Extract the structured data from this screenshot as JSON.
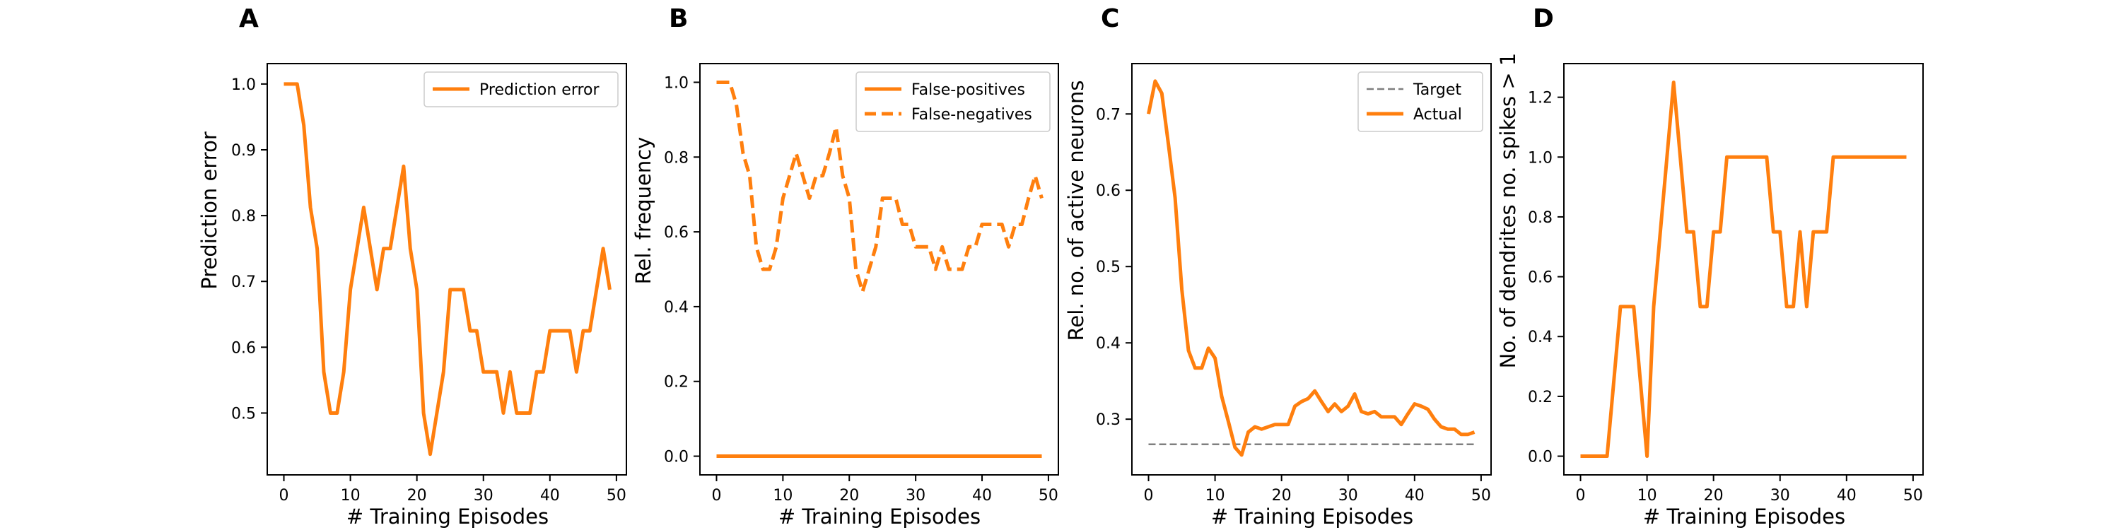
{
  "colors": {
    "orange": "#ff7f0e",
    "gray": "#7f7f7f"
  },
  "chart_data": [
    {
      "panel": "A",
      "type": "line",
      "xlabel": "# Training Episodes",
      "ylabel": "Prediction error",
      "xlim": [
        -2.5,
        51.5
      ],
      "ylim": [
        0.406,
        1.031
      ],
      "xticks": [
        0,
        10,
        20,
        30,
        40,
        50
      ],
      "yticks": [
        0.5,
        0.6,
        0.7,
        0.8,
        0.9,
        1.0
      ],
      "ytick_labels": [
        "0.5",
        "0.6",
        "0.7",
        "0.8",
        "0.9",
        "1.0"
      ],
      "legend_loc": "upper right",
      "series": [
        {
          "name": "Prediction error",
          "color": "#ff7f0e",
          "dash": "solid",
          "x": [
            0,
            1,
            2,
            3,
            4,
            5,
            6,
            7,
            8,
            9,
            10,
            11,
            12,
            13,
            14,
            15,
            16,
            17,
            18,
            19,
            20,
            21,
            22,
            23,
            24,
            25,
            26,
            27,
            28,
            29,
            30,
            31,
            32,
            33,
            34,
            35,
            36,
            37,
            38,
            39,
            40,
            41,
            42,
            43,
            44,
            45,
            46,
            47,
            48,
            49
          ],
          "y": [
            1.0,
            1.0,
            1.0,
            0.9375,
            0.8125,
            0.75,
            0.5625,
            0.5,
            0.5,
            0.5625,
            0.6875,
            0.75,
            0.8125,
            0.75,
            0.6875,
            0.75,
            0.75,
            0.8125,
            0.875,
            0.75,
            0.6875,
            0.5,
            0.4375,
            0.5,
            0.5625,
            0.6875,
            0.6875,
            0.6875,
            0.625,
            0.625,
            0.5625,
            0.5625,
            0.5625,
            0.5,
            0.5625,
            0.5,
            0.5,
            0.5,
            0.5625,
            0.5625,
            0.625,
            0.625,
            0.625,
            0.625,
            0.5625,
            0.625,
            0.625,
            0.6875,
            0.75,
            0.6875
          ]
        }
      ]
    },
    {
      "panel": "B",
      "type": "line",
      "xlabel": "# Training Episodes",
      "ylabel": "Rel. frequency",
      "xlim": [
        -2.5,
        51.5
      ],
      "ylim": [
        -0.05,
        1.05
      ],
      "xticks": [
        0,
        10,
        20,
        30,
        40,
        50
      ],
      "yticks": [
        0.0,
        0.2,
        0.4,
        0.6,
        0.8,
        1.0
      ],
      "ytick_labels": [
        "0.0",
        "0.2",
        "0.4",
        "0.6",
        "0.8",
        "1.0"
      ],
      "legend_loc": "upper right",
      "series": [
        {
          "name": "False-positives",
          "color": "#ff7f0e",
          "dash": "solid",
          "x": [
            0,
            49
          ],
          "y": [
            0.0,
            0.0
          ]
        },
        {
          "name": "False-negatives",
          "color": "#ff7f0e",
          "dash": "dashed",
          "x": [
            0,
            1,
            2,
            3,
            4,
            5,
            6,
            7,
            8,
            9,
            10,
            11,
            12,
            13,
            14,
            15,
            16,
            17,
            18,
            19,
            20,
            21,
            22,
            23,
            24,
            25,
            26,
            27,
            28,
            29,
            30,
            31,
            32,
            33,
            34,
            35,
            36,
            37,
            38,
            39,
            40,
            41,
            42,
            43,
            44,
            45,
            46,
            47,
            48,
            49
          ],
          "y": [
            1.0,
            1.0,
            1.0,
            0.94,
            0.81,
            0.75,
            0.56,
            0.5,
            0.5,
            0.56,
            0.69,
            0.75,
            0.81,
            0.75,
            0.69,
            0.75,
            0.75,
            0.81,
            0.88,
            0.75,
            0.69,
            0.5,
            0.44,
            0.5,
            0.56,
            0.69,
            0.69,
            0.69,
            0.62,
            0.62,
            0.56,
            0.56,
            0.56,
            0.5,
            0.56,
            0.5,
            0.5,
            0.5,
            0.56,
            0.56,
            0.62,
            0.62,
            0.62,
            0.62,
            0.56,
            0.62,
            0.62,
            0.69,
            0.75,
            0.69
          ]
        }
      ]
    },
    {
      "panel": "C",
      "type": "line",
      "xlabel": "# Training Episodes",
      "ylabel": "Rel. no. of active neurons",
      "xlim": [
        -2.5,
        51.5
      ],
      "ylim": [
        0.227,
        0.766
      ],
      "xticks": [
        0,
        10,
        20,
        30,
        40,
        50
      ],
      "yticks": [
        0.3,
        0.4,
        0.5,
        0.6,
        0.7
      ],
      "ytick_labels": [
        "0.3",
        "0.4",
        "0.5",
        "0.6",
        "0.7"
      ],
      "legend_loc": "upper right",
      "series": [
        {
          "name": "Target",
          "color": "#7f7f7f",
          "dash": "gray-dashed",
          "x": [
            0,
            49
          ],
          "y": [
            0.267,
            0.267
          ]
        },
        {
          "name": "Actual",
          "color": "#ff7f0e",
          "dash": "solid",
          "x": [
            0,
            1,
            2,
            3,
            4,
            5,
            6,
            7,
            8,
            9,
            10,
            11,
            12,
            13,
            14,
            15,
            16,
            17,
            18,
            19,
            20,
            21,
            22,
            23,
            24,
            25,
            26,
            27,
            28,
            29,
            30,
            31,
            32,
            33,
            34,
            35,
            36,
            37,
            38,
            39,
            40,
            41,
            42,
            43,
            44,
            45,
            46,
            47,
            48,
            49
          ],
          "y": [
            0.7,
            0.743,
            0.727,
            0.66,
            0.59,
            0.47,
            0.39,
            0.367,
            0.367,
            0.393,
            0.38,
            0.33,
            0.297,
            0.263,
            0.253,
            0.283,
            0.29,
            0.287,
            0.29,
            0.293,
            0.293,
            0.293,
            0.317,
            0.323,
            0.327,
            0.337,
            0.323,
            0.31,
            0.32,
            0.31,
            0.317,
            0.333,
            0.31,
            0.307,
            0.31,
            0.303,
            0.303,
            0.303,
            0.293,
            0.307,
            0.32,
            0.317,
            0.313,
            0.3,
            0.29,
            0.287,
            0.287,
            0.28,
            0.28,
            0.283
          ]
        }
      ]
    },
    {
      "panel": "D",
      "type": "line",
      "xlabel": "# Training Episodes",
      "ylabel": "No. of dendrites no. spikes > 1",
      "xlim": [
        -2.5,
        51.5
      ],
      "ylim": [
        -0.0625,
        1.3125
      ],
      "xticks": [
        0,
        10,
        20,
        30,
        40,
        50
      ],
      "yticks": [
        0.0,
        0.2,
        0.4,
        0.6,
        0.8,
        1.0,
        1.2
      ],
      "ytick_labels": [
        "0.0",
        "0.2",
        "0.4",
        "0.6",
        "0.8",
        "1.0",
        "1.2"
      ],
      "series": [
        {
          "color": "#ff7f0e",
          "dash": "solid",
          "x": [
            0,
            1,
            2,
            3,
            4,
            5,
            6,
            7,
            8,
            9,
            10,
            11,
            12,
            13,
            14,
            15,
            16,
            17,
            18,
            19,
            20,
            21,
            22,
            23,
            24,
            25,
            26,
            27,
            28,
            29,
            30,
            31,
            32,
            33,
            34,
            35,
            36,
            37,
            38,
            39,
            40,
            41,
            42,
            43,
            44,
            45,
            46,
            47,
            48,
            49
          ],
          "y": [
            0,
            0,
            0,
            0,
            0,
            0.25,
            0.5,
            0.5,
            0.5,
            0.25,
            0,
            0.5,
            0.75,
            1.0,
            1.25,
            1.0,
            0.75,
            0.75,
            0.5,
            0.5,
            0.75,
            0.75,
            1.0,
            1.0,
            1.0,
            1.0,
            1.0,
            1.0,
            1.0,
            0.75,
            0.75,
            0.5,
            0.5,
            0.75,
            0.5,
            0.75,
            0.75,
            0.75,
            1.0,
            1.0,
            1.0,
            1.0,
            1.0,
            1.0,
            1.0,
            1.0,
            1.0,
            1.0,
            1.0,
            1.0
          ]
        }
      ]
    }
  ]
}
